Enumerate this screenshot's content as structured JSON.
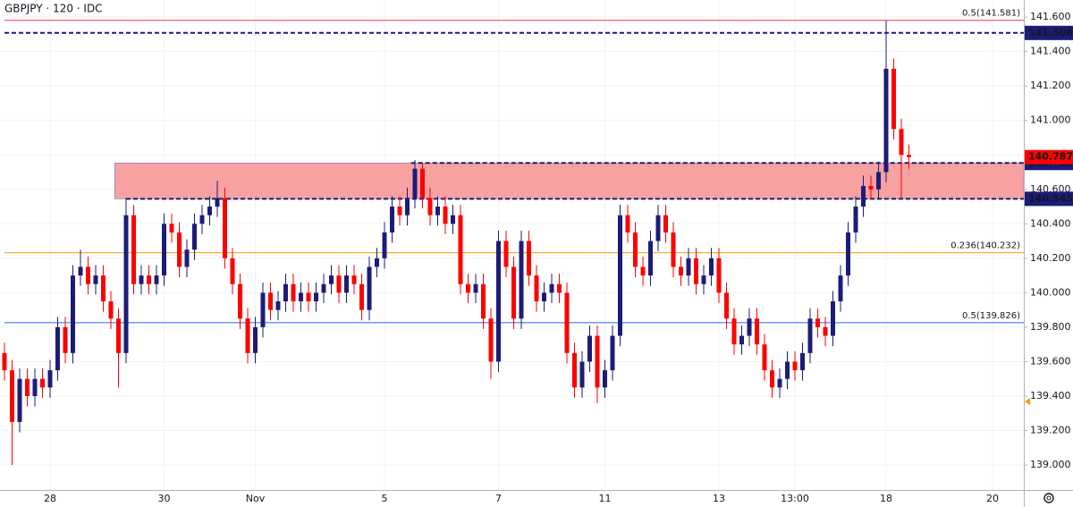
{
  "chart_data": {
    "type": "candlestick",
    "title": "GBPJPY · 120 · IDC",
    "up_color": "#1c1c78",
    "down_color": "#ff0000",
    "categories": [
      null,
      null,
      null,
      null,
      null,
      null,
      "28",
      null,
      null,
      null,
      null,
      null,
      null,
      null,
      null,
      null,
      null,
      null,
      null,
      null,
      null,
      "30",
      null,
      null,
      null,
      null,
      null,
      null,
      null,
      null,
      null,
      null,
      null,
      "Nov",
      null,
      null,
      null,
      null,
      null,
      null,
      null,
      null,
      null,
      null,
      null,
      null,
      null,
      null,
      null,
      null,
      "5",
      null,
      null,
      null,
      null,
      null,
      null,
      null,
      null,
      null,
      null,
      null,
      null,
      null,
      null,
      "7",
      null,
      null,
      null,
      null,
      null,
      null,
      null,
      null,
      null,
      null,
      null,
      null,
      null,
      "11",
      null,
      null,
      null,
      null,
      null,
      null,
      null,
      null,
      null,
      null,
      null,
      null,
      null,
      null,
      "13",
      null,
      null,
      null,
      null,
      null,
      null,
      null,
      null,
      null,
      "13:00",
      null,
      null,
      null,
      null,
      null,
      null,
      null,
      null,
      null,
      null,
      null,
      "18",
      null,
      null,
      null,
      null,
      null,
      null,
      null,
      null,
      null,
      null,
      null,
      null,
      null,
      "20",
      null,
      null,
      null,
      null
    ],
    "open": [
      139.65,
      139.55,
      139.25,
      139.5,
      139.4,
      139.5,
      139.45,
      139.55,
      139.8,
      139.65,
      140.1,
      140.15,
      140.05,
      140.1,
      139.95,
      139.85,
      139.65,
      140.45,
      140.05,
      140.1,
      140.05,
      140.1,
      140.4,
      140.35,
      140.15,
      140.25,
      140.4,
      140.45,
      140.5,
      140.55,
      140.2,
      140.05,
      139.85,
      139.65,
      139.8,
      140.0,
      139.9,
      139.95,
      140.05,
      139.95,
      140.0,
      139.95,
      140.0,
      140.05,
      140.1,
      140.0,
      140.1,
      140.05,
      139.9,
      140.15,
      140.2,
      140.35,
      140.5,
      140.45,
      140.55,
      140.72,
      140.55,
      140.45,
      140.5,
      140.4,
      140.45,
      140.05,
      140.0,
      140.05,
      139.85,
      139.6,
      140.3,
      140.15,
      139.85,
      140.3,
      140.1,
      139.95,
      140.0,
      140.05,
      140.0,
      139.65,
      139.45,
      139.6,
      139.75,
      139.45,
      139.55,
      139.75,
      140.45,
      140.35,
      140.15,
      140.1,
      140.3,
      140.45,
      140.35,
      140.15,
      140.1,
      140.2,
      140.05,
      140.1,
      140.2,
      140.0,
      139.85,
      139.7,
      139.75,
      139.85,
      139.7,
      139.55,
      139.45,
      139.5,
      139.6,
      139.55,
      139.65,
      139.85,
      139.8,
      139.75,
      139.95,
      140.1,
      140.35,
      140.5,
      140.62,
      140.6,
      140.7,
      141.3,
      140.95,
      140.8,
      null,
      null,
      null,
      null,
      null,
      null,
      null,
      null,
      null,
      null,
      null,
      null,
      null,
      null,
      null
    ],
    "high": [
      139.71,
      139.61,
      139.56,
      139.56,
      139.56,
      139.56,
      139.61,
      139.86,
      139.86,
      140.16,
      140.25,
      140.21,
      140.16,
      140.16,
      140.01,
      139.91,
      140.55,
      140.51,
      140.16,
      140.16,
      140.16,
      140.46,
      140.46,
      140.41,
      140.31,
      140.46,
      140.51,
      140.56,
      140.65,
      140.61,
      140.26,
      140.11,
      139.91,
      139.86,
      140.06,
      140.06,
      140.01,
      140.11,
      140.11,
      140.06,
      140.06,
      140.06,
      140.11,
      140.16,
      140.16,
      140.16,
      140.16,
      140.11,
      140.21,
      140.26,
      140.41,
      140.56,
      140.56,
      140.61,
      140.77,
      140.75,
      140.61,
      140.56,
      140.56,
      140.51,
      140.51,
      140.11,
      140.11,
      140.11,
      139.91,
      140.36,
      140.36,
      140.21,
      140.36,
      140.36,
      140.16,
      140.06,
      140.11,
      140.11,
      140.06,
      139.71,
      139.66,
      139.81,
      139.81,
      139.61,
      139.81,
      140.51,
      140.51,
      140.41,
      140.21,
      140.36,
      140.51,
      140.51,
      140.41,
      140.21,
      140.26,
      140.26,
      140.16,
      140.26,
      140.26,
      140.06,
      139.91,
      139.81,
      139.91,
      139.91,
      139.76,
      139.61,
      139.56,
      139.66,
      139.66,
      139.71,
      139.91,
      139.91,
      139.86,
      140.01,
      140.16,
      140.41,
      140.56,
      140.68,
      140.68,
      140.76,
      141.58,
      141.36,
      141.01,
      140.86,
      null,
      null,
      null,
      null,
      null,
      null,
      null,
      null,
      null,
      null,
      null,
      null,
      null,
      null,
      null
    ],
    "low": [
      139.49,
      139.0,
      139.19,
      139.34,
      139.34,
      139.39,
      139.39,
      139.49,
      139.59,
      139.59,
      140.04,
      139.99,
      139.99,
      139.89,
      139.79,
      139.45,
      139.59,
      139.99,
      139.99,
      139.99,
      139.99,
      140.04,
      140.29,
      140.09,
      140.09,
      140.19,
      140.34,
      140.39,
      140.44,
      140.14,
      139.99,
      139.79,
      139.59,
      139.59,
      139.74,
      139.84,
      139.84,
      139.89,
      139.89,
      139.89,
      139.89,
      139.89,
      139.94,
      139.99,
      139.94,
      139.94,
      139.99,
      139.84,
      139.84,
      140.09,
      140.14,
      140.29,
      140.39,
      140.39,
      140.49,
      140.49,
      140.39,
      140.39,
      140.34,
      140.34,
      139.99,
      139.94,
      139.94,
      139.79,
      139.5,
      139.54,
      140.09,
      139.79,
      139.79,
      140.04,
      139.89,
      139.89,
      139.94,
      139.94,
      139.59,
      139.39,
      139.39,
      139.54,
      139.36,
      139.39,
      139.49,
      139.69,
      140.29,
      140.09,
      140.04,
      140.04,
      140.24,
      140.29,
      140.09,
      140.04,
      140.04,
      139.99,
      139.99,
      140.04,
      139.94,
      139.79,
      139.64,
      139.64,
      139.69,
      139.64,
      139.49,
      139.39,
      139.39,
      139.44,
      139.49,
      139.49,
      139.59,
      139.74,
      139.69,
      139.69,
      139.89,
      140.04,
      140.29,
      140.44,
      140.54,
      140.54,
      140.64,
      140.89,
      140.55,
      140.72,
      null,
      null,
      null,
      null,
      null,
      null,
      null,
      null,
      null,
      null,
      null,
      null,
      null,
      null,
      null
    ],
    "close": [
      139.55,
      139.25,
      139.5,
      139.4,
      139.5,
      139.45,
      139.55,
      139.8,
      139.65,
      140.1,
      140.15,
      140.05,
      140.1,
      139.95,
      139.85,
      139.65,
      140.45,
      140.05,
      140.1,
      140.05,
      140.1,
      140.4,
      140.35,
      140.15,
      140.25,
      140.4,
      140.45,
      140.5,
      140.55,
      140.2,
      140.05,
      139.85,
      139.65,
      139.8,
      140.0,
      139.9,
      139.95,
      140.05,
      139.95,
      140.0,
      139.95,
      140.0,
      140.05,
      140.1,
      140.0,
      140.1,
      140.05,
      139.9,
      140.15,
      140.2,
      140.35,
      140.5,
      140.45,
      140.55,
      140.72,
      140.55,
      140.45,
      140.5,
      140.4,
      140.45,
      140.05,
      140.0,
      140.05,
      139.85,
      139.6,
      140.3,
      140.15,
      139.85,
      140.3,
      140.1,
      139.95,
      140.0,
      140.05,
      140.0,
      139.65,
      139.45,
      139.6,
      139.75,
      139.45,
      139.55,
      139.75,
      140.45,
      140.35,
      140.15,
      140.1,
      140.3,
      140.45,
      140.35,
      140.15,
      140.1,
      140.2,
      140.05,
      140.1,
      140.2,
      140.0,
      139.85,
      139.7,
      139.75,
      139.85,
      139.7,
      139.55,
      139.45,
      139.5,
      139.6,
      139.55,
      139.65,
      139.85,
      139.8,
      139.75,
      139.95,
      140.1,
      140.35,
      140.5,
      140.62,
      140.6,
      140.7,
      141.3,
      140.95,
      140.8,
      140.787,
      null,
      null,
      null,
      null,
      null,
      null,
      null,
      null,
      null,
      null,
      null,
      null,
      null,
      null,
      null
    ],
    "ylim": [
      138.855,
      141.699
    ],
    "yticks": [
      {
        "value": 139.0,
        "label": "139.000"
      },
      {
        "value": 139.2,
        "label": "139.200"
      },
      {
        "value": 139.4,
        "label": "139.400"
      },
      {
        "value": 139.6,
        "label": "139.600"
      },
      {
        "value": 139.8,
        "label": "139.800"
      },
      {
        "value": 140.0,
        "label": "140.000"
      },
      {
        "value": 140.2,
        "label": "140.200"
      },
      {
        "value": 140.4,
        "label": "140.400"
      },
      {
        "value": 140.6,
        "label": "140.600"
      },
      {
        "value": 140.8,
        "label": "140.800"
      },
      {
        "value": 141.0,
        "label": "141.000"
      },
      {
        "value": 141.2,
        "label": "141.200"
      },
      {
        "value": 141.4,
        "label": "141.400"
      },
      {
        "value": 141.6,
        "label": "141.600"
      }
    ],
    "grid": true,
    "zone": {
      "low": 140.545,
      "high": 140.753,
      "start": 14.5,
      "color": "#f7a1a1"
    },
    "levels": [
      {
        "value": 141.581,
        "label": "0.5(141.581)",
        "color": "#f23645",
        "style": "solid",
        "start": 0
      },
      {
        "value": 141.508,
        "color": "#1c1c78",
        "style": "dashed",
        "start": 0,
        "tag": true
      },
      {
        "value": 140.753,
        "color": "#1c1c78",
        "style": "dashed",
        "start": 53.5,
        "tag": true
      },
      {
        "value": 140.545,
        "color": "#1c1c78",
        "style": "dashed",
        "start": 16,
        "tag": true
      },
      {
        "value": 140.232,
        "label": "0.236(140.232)",
        "color": "#ff9800",
        "style": "solid",
        "start": 0
      },
      {
        "value": 139.826,
        "label": "0.5(139.826)",
        "color": "#2962ff",
        "style": "solid",
        "start": 0
      }
    ],
    "last_price_color": "#ff0000"
  }
}
